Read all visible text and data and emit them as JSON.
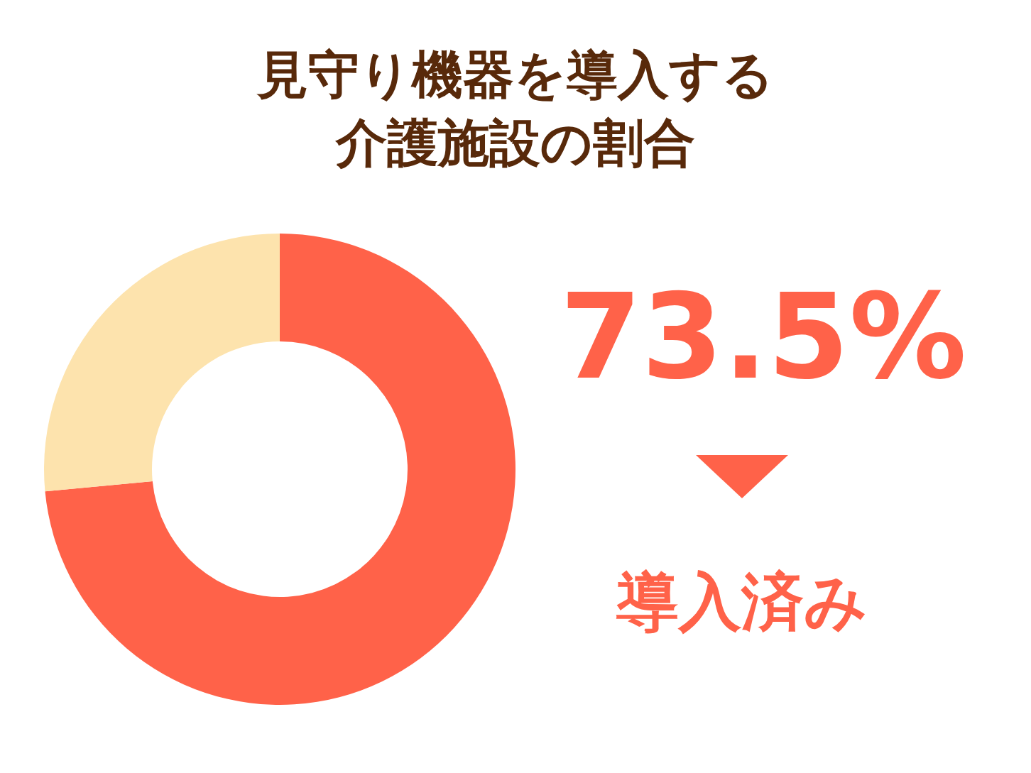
{
  "chart_data": {
    "type": "donut",
    "title": "見守り機器を導入する介護施設の割合",
    "categories": [
      "導入済み",
      null
    ],
    "values": [
      73.5,
      26.5
    ],
    "colors": [
      "#ff6249",
      "#fde3ad"
    ],
    "value_labels": [
      "73.5%",
      null
    ]
  }
}
